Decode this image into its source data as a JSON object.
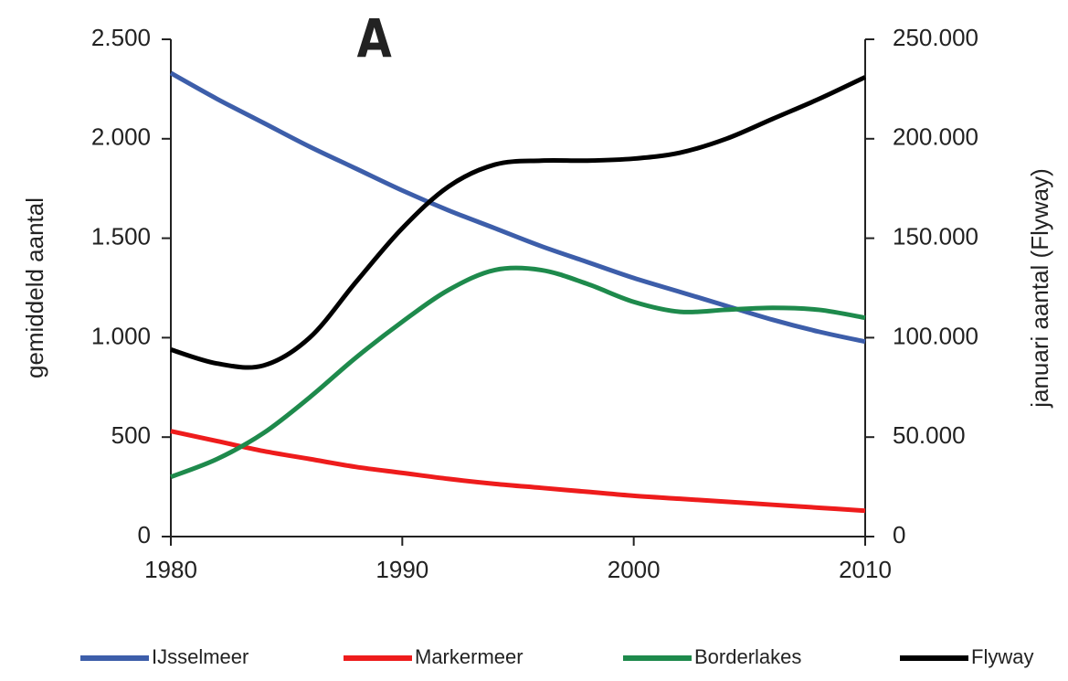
{
  "chart_data": {
    "type": "line",
    "title": "A",
    "y_label": "gemiddeld aantal",
    "y2_label": "januari aantal (Flyway)",
    "x": [
      1980,
      1982,
      1984,
      1986,
      1988,
      1990,
      1992,
      1994,
      1996,
      1998,
      2000,
      2002,
      2004,
      2006,
      2008,
      2010
    ],
    "xlim": [
      1980,
      2010
    ],
    "xticks": [
      1980,
      1990,
      2000,
      2010
    ],
    "ylim": [
      0,
      2500
    ],
    "yticks": [
      0,
      500,
      {
        "value": 1000,
        "label": "1.000"
      },
      {
        "value": 1500,
        "label": "1.500"
      },
      {
        "value": 2000,
        "label": "2.000"
      },
      {
        "value": 2500,
        "label": "2.500"
      }
    ],
    "y2lim": [
      0,
      250000
    ],
    "y2ticks": [
      0,
      {
        "value": 50000,
        "label": "50.000"
      },
      {
        "value": 100000,
        "label": "100.000"
      },
      {
        "value": 150000,
        "label": "150.000"
      },
      {
        "value": 200000,
        "label": "200.000"
      },
      {
        "value": 250000,
        "label": "250.000"
      }
    ],
    "series": [
      {
        "name": "IJsselmeer",
        "color": "#3d5eaa",
        "values": [
          2330,
          2200,
          2080,
          1960,
          1850,
          1740,
          1640,
          1550,
          1460,
          1380,
          1300,
          1230,
          1160,
          1090,
          1030,
          980
        ]
      },
      {
        "name": "Markermeer",
        "color": "#ee1c1c",
        "values": [
          530,
          480,
          430,
          390,
          350,
          320,
          290,
          265,
          245,
          225,
          205,
          190,
          175,
          160,
          145,
          130
        ]
      },
      {
        "name": "Borderlakes",
        "color": "#1e8a4c",
        "values": [
          300,
          390,
          520,
          700,
          900,
          1080,
          1240,
          1340,
          1340,
          1270,
          1180,
          1130,
          1140,
          1150,
          1140,
          1100
        ]
      },
      {
        "name": "Flyway",
        "color": "#000000",
        "axis": "y2",
        "values": [
          94000,
          87000,
          86000,
          100000,
          128000,
          155000,
          176000,
          187000,
          189000,
          189000,
          190000,
          193000,
          200000,
          210000,
          220000,
          231000
        ]
      }
    ]
  }
}
